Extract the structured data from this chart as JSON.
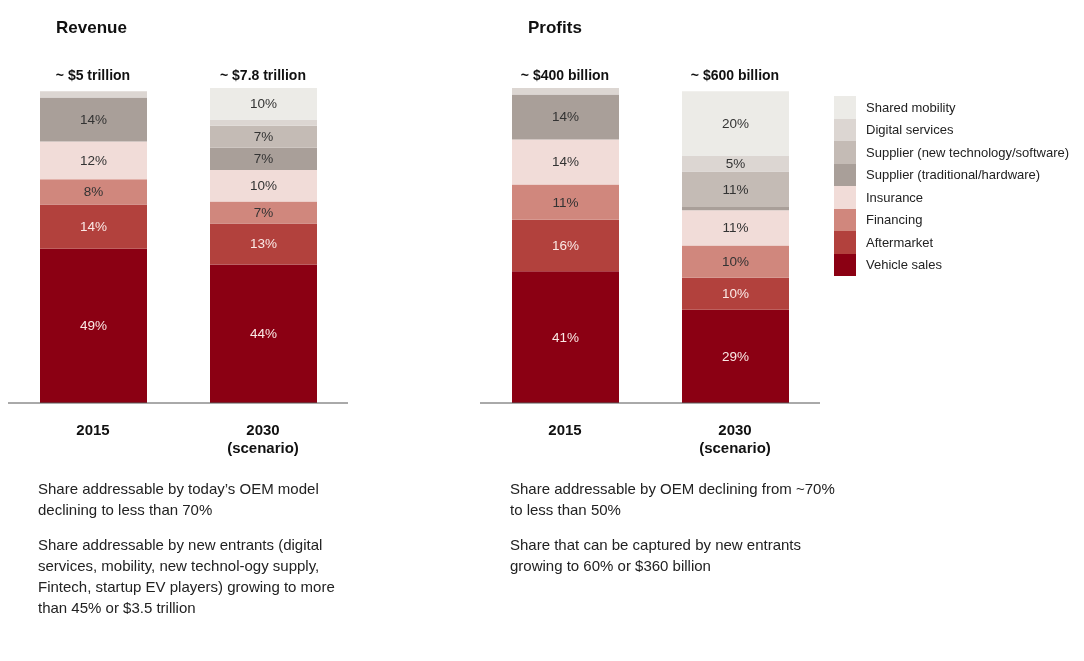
{
  "chart_data": [
    {
      "type": "bar",
      "title": "Revenue",
      "stacked": true,
      "legend": false,
      "categories": [
        "2015",
        "2030 (scenario)"
      ],
      "series": [
        {
          "color": "#8b0013",
          "values": [
            49,
            44
          ],
          "value_labels": [
            "49%",
            "44%"
          ]
        },
        {
          "color": "#b2413d",
          "values": [
            14,
            13
          ],
          "value_labels": [
            "14%",
            "13%"
          ]
        },
        {
          "color": "#d0877d",
          "values": [
            8,
            7
          ],
          "value_labels": [
            "8%",
            "7%"
          ]
        },
        {
          "color": "#f1dcd8",
          "values": [
            12,
            10
          ],
          "value_labels": [
            "12%",
            "10%"
          ]
        },
        {
          "color": "#a99f99",
          "values": [
            14,
            7
          ],
          "value_labels": [
            "14%",
            "7%"
          ]
        },
        {
          "color": "#c4bbb5",
          "values": [
            null,
            7
          ],
          "value_labels": [
            null,
            "7%"
          ]
        },
        {
          "color": "#dcd6d2",
          "values": [
            2,
            2
          ],
          "value_labels": [
            null,
            null
          ]
        },
        {
          "color": "#ecebe7",
          "values": [
            null,
            10
          ],
          "value_labels": [
            null,
            "10%"
          ]
        }
      ],
      "annotations": [
        "~ $5 trillion",
        "~ $7.8 trillion",
        "Share addressable by today’s OEM model declining to less than 70%",
        "Share addressable by new entrants (digital services, mobility, new technol-ogy supply, Fintech, startup EV players) growing to more than 45% or $3.5 trillion"
      ]
    },
    {
      "type": "bar",
      "title": "Profits",
      "stacked": true,
      "legend": "right",
      "categories": [
        "2015",
        "2030 (scenario)"
      ],
      "series": [
        {
          "name": "Vehicle sales",
          "color": "#8b0013",
          "values": [
            41,
            29
          ],
          "value_labels": [
            "41%",
            "29%"
          ]
        },
        {
          "name": "Aftermarket",
          "color": "#b2413d",
          "values": [
            16,
            10
          ],
          "value_labels": [
            "16%",
            "10%"
          ]
        },
        {
          "name": "Financing",
          "color": "#d0877d",
          "values": [
            11,
            10
          ],
          "value_labels": [
            "11%",
            "10%"
          ]
        },
        {
          "name": "Insurance",
          "color": "#f1dcd8",
          "values": [
            14,
            11
          ],
          "value_labels": [
            "14%",
            "11%"
          ]
        },
        {
          "name": "Supplier (traditional/hardware)",
          "color": "#a99f99",
          "values": [
            14,
            1
          ],
          "value_labels": [
            "14%",
            null
          ]
        },
        {
          "name": "Supplier (new technology/software)",
          "color": "#c4bbb5",
          "values": [
            null,
            11
          ],
          "value_labels": [
            null,
            "11%"
          ]
        },
        {
          "name": "Digital services",
          "color": "#dcd6d2",
          "values": [
            2,
            5
          ],
          "value_labels": [
            null,
            "5%"
          ]
        },
        {
          "name": "Shared mobility",
          "color": "#ecebe7",
          "values": [
            null,
            20
          ],
          "value_labels": [
            null,
            "20%"
          ]
        }
      ],
      "annotations": [
        "~ $400 billion",
        "~ $600 billion",
        "Share addressable by OEM declining from ~70% to less than 50%",
        "Share that can be captured by new entrants growing to 60% or $360 billion"
      ]
    }
  ]
}
